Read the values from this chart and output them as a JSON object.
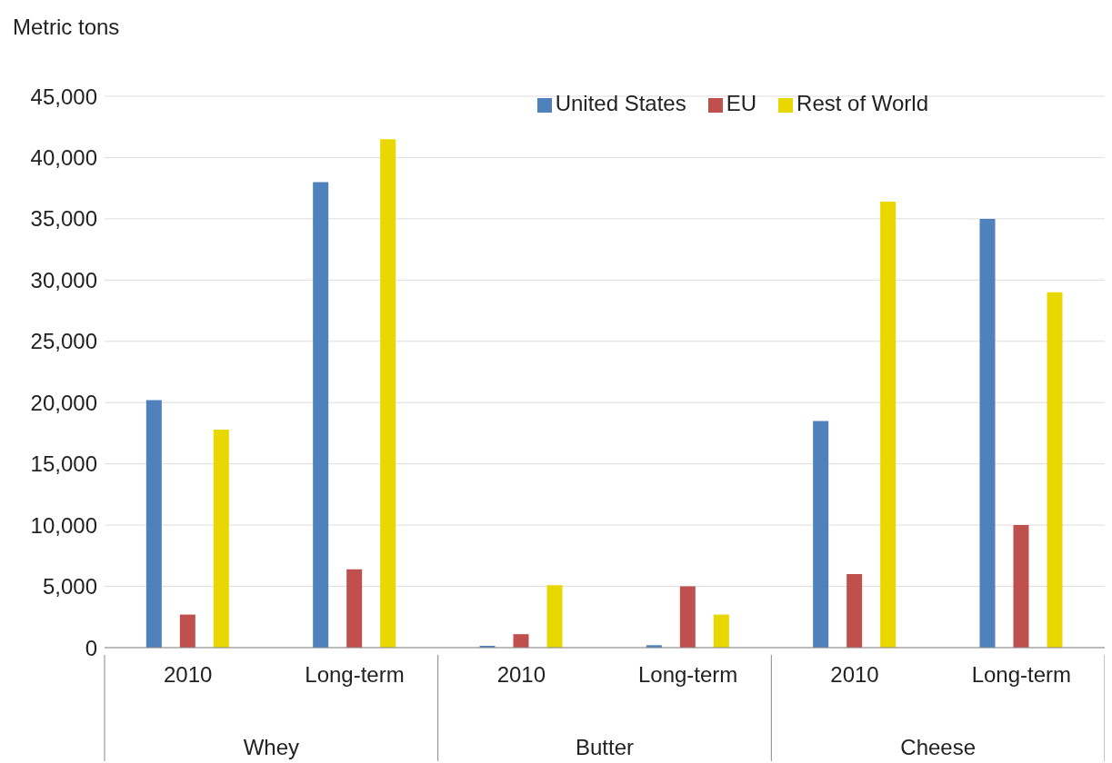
{
  "chart_data": {
    "type": "bar",
    "ylabel": "Metric tons",
    "categories": [
      "2010",
      "Long-term",
      "2010",
      "Long-term",
      "2010",
      "Long-term"
    ],
    "annotations": [
      "Whey",
      "Butter",
      "Cheese"
    ],
    "series": [
      {
        "name": "United States",
        "color": "#4f81bd",
        "values": [
          20200,
          38000,
          150,
          200,
          18500,
          35000
        ]
      },
      {
        "name": "EU",
        "color": "#c0504d",
        "values": [
          2700,
          6400,
          1100,
          5000,
          6000,
          10000
        ]
      },
      {
        "name": "Rest of World",
        "color": "#e8d800",
        "values": [
          17800,
          41500,
          5100,
          2700,
          36400,
          29000
        ]
      }
    ],
    "ylim": [
      0,
      45000
    ],
    "yticks": [
      0,
      {
        "value": 5000,
        "label": "5,000"
      },
      {
        "value": 10000,
        "label": "10,000"
      },
      {
        "value": 15000,
        "label": "15,000"
      },
      {
        "value": 20000,
        "label": "20,000"
      },
      {
        "value": 25000,
        "label": "25,000"
      },
      {
        "value": 30000,
        "label": "30,000"
      },
      {
        "value": 35000,
        "label": "35,000"
      },
      {
        "value": 40000,
        "label": "40,000"
      },
      {
        "value": 45000,
        "label": "45,000"
      }
    ],
    "grid": "y",
    "legend": "top right"
  }
}
